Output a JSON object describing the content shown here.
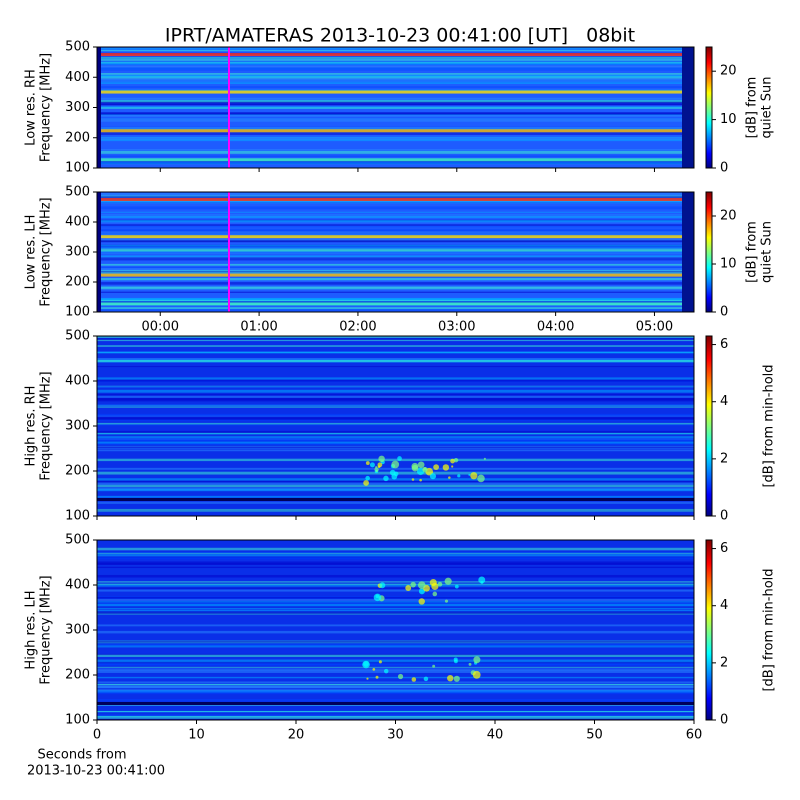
{
  "chart_data": [
    {
      "type": "heatmap",
      "title": "IPRT/AMATERAS 2013-10-23 00:41:00 [UT]   08bit",
      "ylabel": [
        "Low res. RH",
        "Frequency [MHz]"
      ],
      "ylim": [
        100,
        500
      ],
      "yticks": [
        100,
        200,
        300,
        400,
        500
      ],
      "xlim": [
        -0.64,
        5.4
      ],
      "xticks": [
        0,
        1,
        2,
        3,
        4,
        5
      ],
      "colorbar_label": [
        "[dB] from",
        "quiet Sun"
      ],
      "clim": [
        0,
        25
      ],
      "cticks": [
        0,
        10,
        20
      ]
    },
    {
      "type": "heatmap",
      "ylabel": [
        "Low res. LH",
        "Frequency [MHz]"
      ],
      "ylim": [
        100,
        500
      ],
      "yticks": [
        100,
        200,
        300,
        400,
        500
      ],
      "xlim": [
        -0.64,
        5.4
      ],
      "xticks": [
        {
          "value": 0,
          "label": "00:00"
        },
        {
          "value": 1,
          "label": "01:00"
        },
        {
          "value": 2,
          "label": "02:00"
        },
        {
          "value": 3,
          "label": "03:00"
        },
        {
          "value": 4,
          "label": "04:00"
        },
        {
          "value": 5,
          "label": "05:00"
        }
      ],
      "colorbar_label": [
        "[dB] from",
        "quiet Sun"
      ],
      "clim": [
        0,
        25
      ],
      "cticks": [
        0,
        10,
        20
      ]
    },
    {
      "type": "heatmap",
      "ylabel": [
        "High res. RH",
        "Frequency [MHz]"
      ],
      "ylim": [
        100,
        500
      ],
      "yticks": [
        100,
        200,
        300,
        400,
        500
      ],
      "xlim": [
        0,
        60
      ],
      "xticks": [
        0,
        10,
        20,
        30,
        40,
        50,
        60
      ],
      "colorbar_label": [
        "[dB] from min-hold"
      ],
      "clim": [
        0,
        6.3
      ],
      "cticks": [
        0,
        2,
        4,
        6
      ]
    },
    {
      "type": "heatmap",
      "ylabel": [
        "High res. LH",
        "Frequency [MHz]"
      ],
      "ylim": [
        100,
        500
      ],
      "yticks": [
        100,
        200,
        300,
        400,
        500
      ],
      "xlim": [
        0,
        60
      ],
      "xticks": [
        {
          "value": 0,
          "label": "0"
        },
        {
          "value": 10,
          "label": "10"
        },
        {
          "value": 20,
          "label": "20"
        },
        {
          "value": 30,
          "label": "30"
        },
        {
          "value": 40,
          "label": "40"
        },
        {
          "value": 50,
          "label": "50"
        },
        {
          "value": 60,
          "label": "60"
        }
      ],
      "xlabel": [
        "Seconds from",
        "2013-10-23 00:41:00"
      ],
      "colorbar_label": [
        "[dB] from min-hold"
      ],
      "clim": [
        0,
        6.3
      ],
      "cticks": [
        0,
        2,
        4,
        6
      ]
    }
  ]
}
